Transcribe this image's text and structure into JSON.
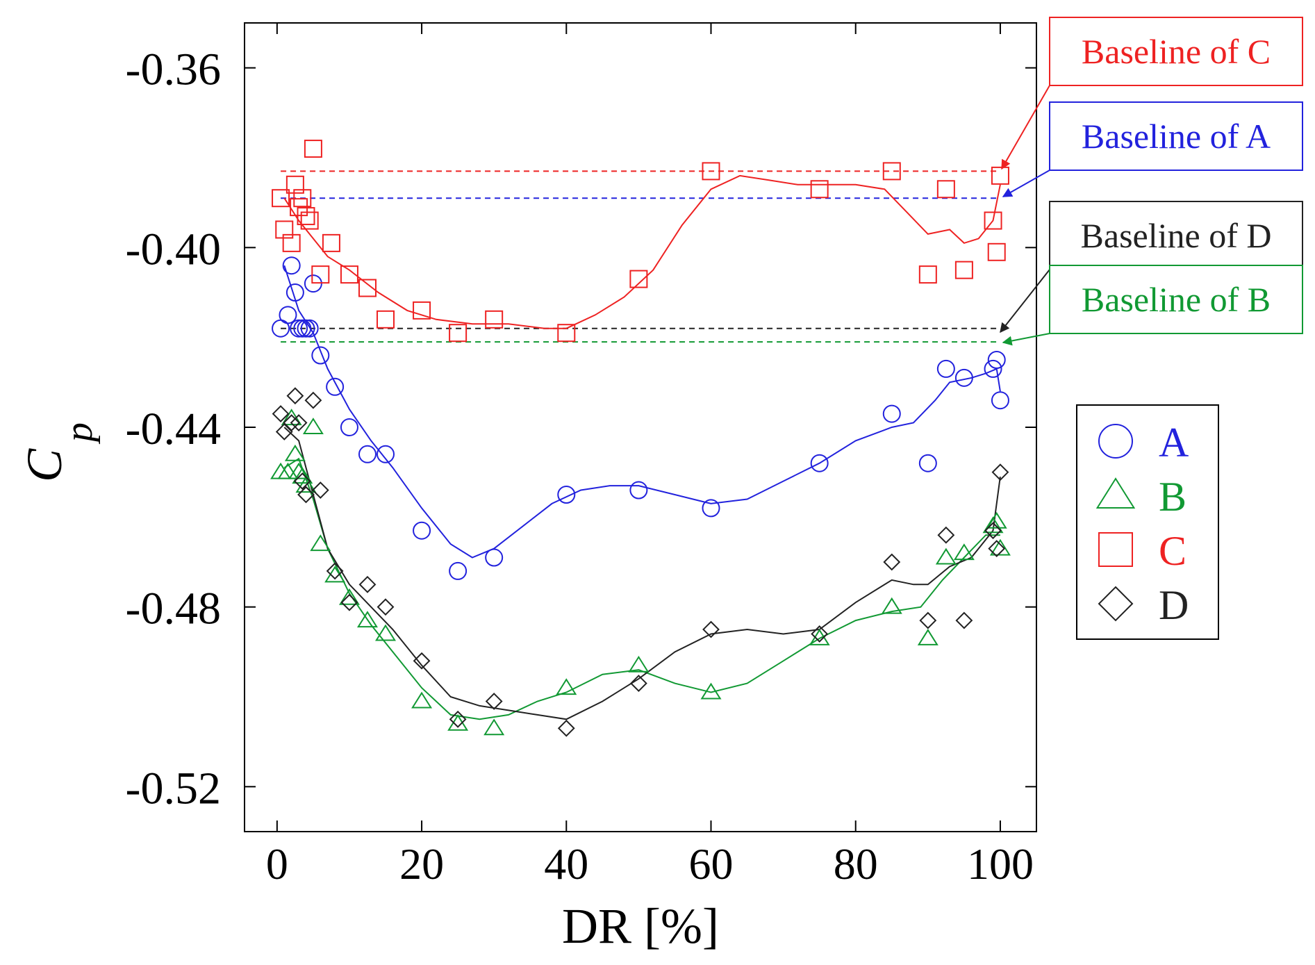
{
  "chart_data": {
    "type": "scatter",
    "title": "",
    "xlabel": "DR [%]",
    "ylabel_main": "C",
    "ylabel_sub": "p",
    "xlim": [
      -4.5,
      105
    ],
    "ylim": [
      -0.53,
      -0.35
    ],
    "xticks": [
      0,
      20,
      40,
      60,
      80,
      100
    ],
    "xtick_labels": [
      "0",
      "20",
      "40",
      "60",
      "80",
      "100"
    ],
    "yticks": [
      -0.36,
      -0.4,
      -0.44,
      -0.48,
      -0.52
    ],
    "ytick_labels": [
      "-0.36",
      "-0.40",
      "-0.44",
      "-0.48",
      "-0.52"
    ],
    "legend_position": "right",
    "series": [
      {
        "name": "A",
        "marker": "circle",
        "color": "#2222dd",
        "points": [
          [
            0.5,
            -0.418
          ],
          [
            1.5,
            -0.415
          ],
          [
            2,
            -0.404
          ],
          [
            2.5,
            -0.41
          ],
          [
            3,
            -0.418
          ],
          [
            3.5,
            -0.418
          ],
          [
            4,
            -0.418
          ],
          [
            4.5,
            -0.418
          ],
          [
            5,
            -0.408
          ],
          [
            6,
            -0.424
          ],
          [
            8,
            -0.431
          ],
          [
            10,
            -0.44
          ],
          [
            12.5,
            -0.446
          ],
          [
            15,
            -0.446
          ],
          [
            20,
            -0.463
          ],
          [
            25,
            -0.472
          ],
          [
            30,
            -0.469
          ],
          [
            40,
            -0.455
          ],
          [
            50,
            -0.454
          ],
          [
            60,
            -0.458
          ],
          [
            75,
            -0.448
          ],
          [
            85,
            -0.437
          ],
          [
            90,
            -0.448
          ],
          [
            92.5,
            -0.427
          ],
          [
            95,
            -0.429
          ],
          [
            99,
            -0.427
          ],
          [
            99.5,
            -0.425
          ],
          [
            100,
            -0.434
          ]
        ],
        "trend": [
          [
            1,
            -0.404
          ],
          [
            3,
            -0.414
          ],
          [
            5,
            -0.419
          ],
          [
            7,
            -0.427
          ],
          [
            10,
            -0.436
          ],
          [
            13,
            -0.443
          ],
          [
            16,
            -0.449
          ],
          [
            20,
            -0.458
          ],
          [
            24,
            -0.466
          ],
          [
            27,
            -0.469
          ],
          [
            30,
            -0.467
          ],
          [
            34,
            -0.462
          ],
          [
            38,
            -0.457
          ],
          [
            42,
            -0.454
          ],
          [
            46,
            -0.453
          ],
          [
            50,
            -0.453
          ],
          [
            55,
            -0.455
          ],
          [
            60,
            -0.457
          ],
          [
            65,
            -0.456
          ],
          [
            70,
            -0.452
          ],
          [
            75,
            -0.448
          ],
          [
            80,
            -0.443
          ],
          [
            85,
            -0.44
          ],
          [
            88,
            -0.439
          ],
          [
            91,
            -0.434
          ],
          [
            93,
            -0.43
          ],
          [
            96,
            -0.429
          ],
          [
            98,
            -0.428
          ],
          [
            99.5,
            -0.427
          ],
          [
            100,
            -0.432
          ]
        ]
      },
      {
        "name": "B",
        "marker": "triangle",
        "color": "#119933",
        "points": [
          [
            0.5,
            -0.45
          ],
          [
            1.5,
            -0.45
          ],
          [
            2,
            -0.438
          ],
          [
            2.5,
            -0.446
          ],
          [
            3,
            -0.45
          ],
          [
            3.5,
            -0.451
          ],
          [
            4,
            -0.453
          ],
          [
            5,
            -0.44
          ],
          [
            6,
            -0.466
          ],
          [
            8,
            -0.473
          ],
          [
            10,
            -0.478
          ],
          [
            12.5,
            -0.483
          ],
          [
            15,
            -0.486
          ],
          [
            20,
            -0.501
          ],
          [
            25,
            -0.506
          ],
          [
            30,
            -0.507
          ],
          [
            40,
            -0.498
          ],
          [
            50,
            -0.493
          ],
          [
            60,
            -0.499
          ],
          [
            75,
            -0.487
          ],
          [
            85,
            -0.48
          ],
          [
            90,
            -0.487
          ],
          [
            92.5,
            -0.469
          ],
          [
            95,
            -0.468
          ],
          [
            99,
            -0.462
          ],
          [
            99.5,
            -0.461
          ],
          [
            100,
            -0.467
          ]
        ],
        "trend": [
          [
            1,
            -0.449
          ],
          [
            3,
            -0.447
          ],
          [
            5,
            -0.456
          ],
          [
            7,
            -0.467
          ],
          [
            10,
            -0.477
          ],
          [
            13,
            -0.484
          ],
          [
            16,
            -0.49
          ],
          [
            20,
            -0.498
          ],
          [
            24,
            -0.504
          ],
          [
            28,
            -0.505
          ],
          [
            32,
            -0.504
          ],
          [
            36,
            -0.501
          ],
          [
            40,
            -0.499
          ],
          [
            45,
            -0.495
          ],
          [
            50,
            -0.494
          ],
          [
            55,
            -0.497
          ],
          [
            60,
            -0.499
          ],
          [
            65,
            -0.497
          ],
          [
            70,
            -0.492
          ],
          [
            75,
            -0.487
          ],
          [
            80,
            -0.483
          ],
          [
            85,
            -0.481
          ],
          [
            89,
            -0.48
          ],
          [
            92,
            -0.474
          ],
          [
            95,
            -0.469
          ],
          [
            98,
            -0.464
          ],
          [
            100,
            -0.464
          ]
        ]
      },
      {
        "name": "C",
        "marker": "square",
        "color": "#ee2222",
        "points": [
          [
            0.5,
            -0.389
          ],
          [
            1,
            -0.396
          ],
          [
            2,
            -0.399
          ],
          [
            2.5,
            -0.386
          ],
          [
            3,
            -0.391
          ],
          [
            3.5,
            -0.389
          ],
          [
            4,
            -0.393
          ],
          [
            4.5,
            -0.394
          ],
          [
            5,
            -0.378
          ],
          [
            6,
            -0.406
          ],
          [
            7.5,
            -0.399
          ],
          [
            10,
            -0.406
          ],
          [
            12.5,
            -0.409
          ],
          [
            15,
            -0.416
          ],
          [
            20,
            -0.414
          ],
          [
            25,
            -0.419
          ],
          [
            30,
            -0.416
          ],
          [
            40,
            -0.419
          ],
          [
            50,
            -0.407
          ],
          [
            60,
            -0.383
          ],
          [
            75,
            -0.387
          ],
          [
            85,
            -0.383
          ],
          [
            90,
            -0.406
          ],
          [
            92.5,
            -0.387
          ],
          [
            95,
            -0.405
          ],
          [
            99,
            -0.394
          ],
          [
            99.5,
            -0.401
          ],
          [
            100,
            -0.384
          ]
        ],
        "trend": [
          [
            1,
            -0.389
          ],
          [
            3,
            -0.394
          ],
          [
            5,
            -0.398
          ],
          [
            7,
            -0.402
          ],
          [
            10,
            -0.405
          ],
          [
            14,
            -0.41
          ],
          [
            18,
            -0.414
          ],
          [
            22,
            -0.416
          ],
          [
            27,
            -0.417
          ],
          [
            32,
            -0.417
          ],
          [
            37,
            -0.418
          ],
          [
            40,
            -0.418
          ],
          [
            44,
            -0.415
          ],
          [
            48,
            -0.411
          ],
          [
            52,
            -0.405
          ],
          [
            56,
            -0.395
          ],
          [
            60,
            -0.387
          ],
          [
            64,
            -0.384
          ],
          [
            68,
            -0.385
          ],
          [
            72,
            -0.386
          ],
          [
            76,
            -0.386
          ],
          [
            80,
            -0.386
          ],
          [
            84,
            -0.387
          ],
          [
            87,
            -0.392
          ],
          [
            90,
            -0.397
          ],
          [
            93,
            -0.396
          ],
          [
            95,
            -0.399
          ],
          [
            97,
            -0.398
          ],
          [
            99,
            -0.394
          ],
          [
            100,
            -0.386
          ]
        ]
      },
      {
        "name": "D",
        "marker": "diamond",
        "color": "#222222",
        "points": [
          [
            0.5,
            -0.437
          ],
          [
            1,
            -0.441
          ],
          [
            2,
            -0.439
          ],
          [
            2.5,
            -0.433
          ],
          [
            3,
            -0.439
          ],
          [
            3.5,
            -0.452
          ],
          [
            4,
            -0.455
          ],
          [
            5,
            -0.434
          ],
          [
            6,
            -0.454
          ],
          [
            8,
            -0.472
          ],
          [
            10,
            -0.479
          ],
          [
            12.5,
            -0.475
          ],
          [
            15,
            -0.48
          ],
          [
            20,
            -0.492
          ],
          [
            25,
            -0.505
          ],
          [
            30,
            -0.501
          ],
          [
            40,
            -0.507
          ],
          [
            50,
            -0.497
          ],
          [
            60,
            -0.485
          ],
          [
            75,
            -0.486
          ],
          [
            85,
            -0.47
          ],
          [
            90,
            -0.483
          ],
          [
            92.5,
            -0.464
          ],
          [
            95,
            -0.483
          ],
          [
            99,
            -0.463
          ],
          [
            99.5,
            -0.467
          ],
          [
            100,
            -0.45
          ]
        ],
        "trend": [
          [
            1,
            -0.44
          ],
          [
            3,
            -0.443
          ],
          [
            5,
            -0.455
          ],
          [
            7,
            -0.467
          ],
          [
            10,
            -0.475
          ],
          [
            13,
            -0.48
          ],
          [
            16,
            -0.485
          ],
          [
            20,
            -0.493
          ],
          [
            24,
            -0.5
          ],
          [
            28,
            -0.502
          ],
          [
            32,
            -0.503
          ],
          [
            36,
            -0.504
          ],
          [
            40,
            -0.505
          ],
          [
            45,
            -0.501
          ],
          [
            50,
            -0.496
          ],
          [
            55,
            -0.49
          ],
          [
            60,
            -0.486
          ],
          [
            65,
            -0.485
          ],
          [
            70,
            -0.486
          ],
          [
            75,
            -0.485
          ],
          [
            80,
            -0.479
          ],
          [
            85,
            -0.474
          ],
          [
            88,
            -0.475
          ],
          [
            90,
            -0.475
          ],
          [
            93,
            -0.471
          ],
          [
            96,
            -0.469
          ],
          [
            99,
            -0.463
          ],
          [
            100,
            -0.451
          ]
        ]
      }
    ],
    "baselines": [
      {
        "name": "Baseline of C",
        "series": "C",
        "y": -0.383,
        "color": "#ee2222"
      },
      {
        "name": "Baseline of A",
        "series": "A",
        "y": -0.389,
        "color": "#2222dd"
      },
      {
        "name": "Baseline of D",
        "series": "D",
        "y": -0.418,
        "color": "#222222"
      },
      {
        "name": "Baseline of B",
        "series": "B",
        "y": -0.421,
        "color": "#119933"
      }
    ]
  }
}
